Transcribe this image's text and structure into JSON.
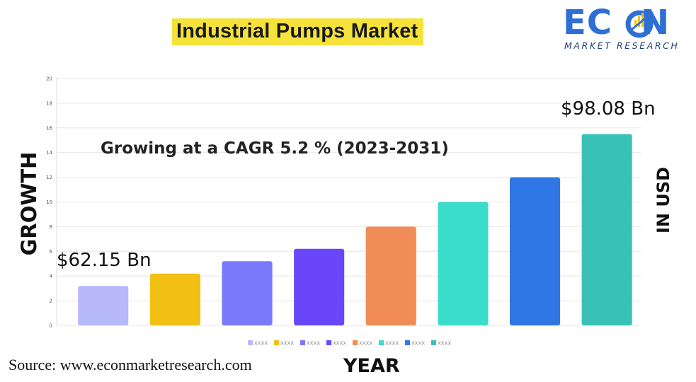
{
  "title": "Industrial Pumps Market",
  "logo": {
    "word": "ECON",
    "subtitle": "MARKET RESEARCH"
  },
  "subtitle": "Growing at a CAGR 5.2 % (2023-2031)",
  "left_label": "GROWTH",
  "right_label": "IN USD",
  "x_label": "YEAR",
  "source": "Source: www.econmarketresearch.com",
  "callouts": {
    "start": "$62.15 Bn",
    "end": "$98.08 Bn"
  },
  "colors": {
    "title_highlight": "#f5e23a",
    "logo_blue": "#2e6fd6",
    "grid": "#e6e6e6"
  },
  "chart_data": {
    "type": "bar",
    "ylim": [
      0,
      20
    ],
    "y_ticks": [
      0,
      2,
      4,
      6,
      8,
      10,
      12,
      14,
      16,
      18,
      20
    ],
    "grid": true,
    "legend_position": "bottom",
    "categories": [
      "XXXX",
      "XXXX",
      "XXXX",
      "XXXX",
      "XXXX",
      "XXXX",
      "XXXX",
      "XXXX"
    ],
    "values": [
      3.2,
      4.2,
      5.2,
      6.2,
      8.0,
      10.0,
      12.0,
      15.5
    ],
    "colors": [
      "#b8b9fb",
      "#f2c014",
      "#7879fb",
      "#6a46fb",
      "#f28c57",
      "#3adccc",
      "#2e77e4",
      "#38c2b6"
    ]
  }
}
